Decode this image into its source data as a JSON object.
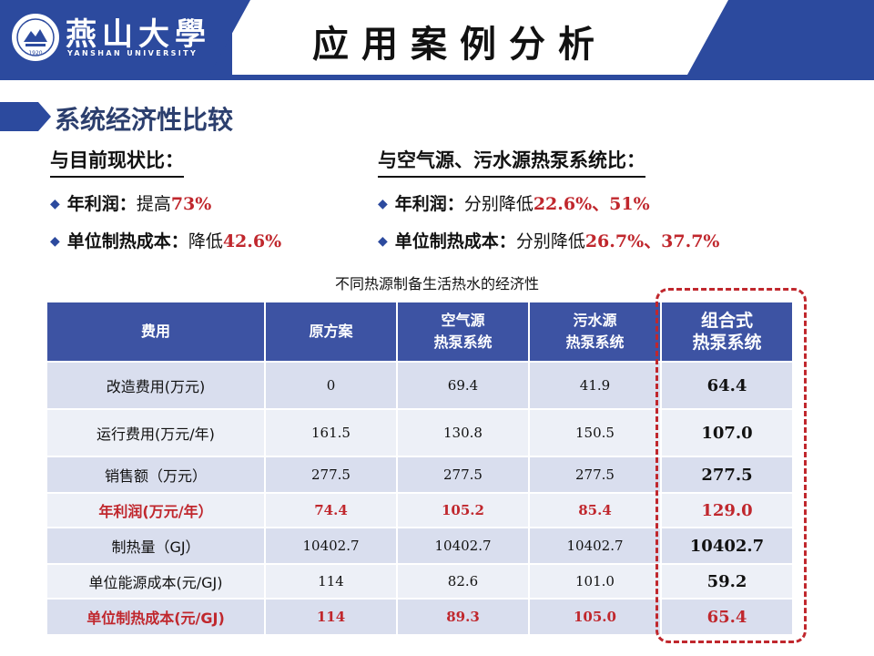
{
  "header": {
    "logo_cn": "燕山大學",
    "logo_en": "YANSHAN UNIVERSITY",
    "seal_year": "1920",
    "title": "应用案例分析"
  },
  "colors": {
    "brand_blue": "#2c4a9e",
    "header_blue": "#3d53a3",
    "accent_red": "#c0272d"
  },
  "section": {
    "title": "系统经济性比较"
  },
  "left": {
    "heading": "与目前现状比：",
    "items": [
      {
        "label": "年利润",
        "sep": "：",
        "text": "提高 ",
        "value": "73%"
      },
      {
        "label": "单位制热成本",
        "sep": "：",
        "text": "降低 ",
        "value": "42.6%"
      }
    ]
  },
  "right": {
    "heading": "与空气源、污水源热泵系统比：",
    "items": [
      {
        "label": "年利润",
        "sep": "：",
        "text": "分别降低 ",
        "value": "22.6%、51%"
      },
      {
        "label": "单位制热成本",
        "sep": "：",
        "text": "分别降低 ",
        "value": "26.7%、37.7%"
      }
    ]
  },
  "table": {
    "title": "不同热源制备生活热水的经济性",
    "headers": [
      {
        "line1": "费用",
        "line2": ""
      },
      {
        "line1": "原方案",
        "line2": ""
      },
      {
        "line1": "空气源",
        "line2": "热泵系统"
      },
      {
        "line1": "污水源",
        "line2": "热泵系统"
      },
      {
        "line1": "组合式",
        "line2": "热泵系统"
      }
    ],
    "rows": [
      {
        "cells": [
          "改造费用(万元)",
          "0",
          "69.4",
          "41.9",
          "64.4"
        ]
      },
      {
        "cells": [
          "运行费用(万元/年)",
          "161.5",
          "130.8",
          "150.5",
          "107.0"
        ]
      },
      {
        "cells": [
          "销售额（万元）",
          "277.5",
          "277.5",
          "277.5",
          "277.5"
        ]
      },
      {
        "cells": [
          "年利润(万元/年）",
          "74.4",
          "105.2",
          "85.4",
          "129.0"
        ]
      },
      {
        "cells": [
          "制热量（GJ）",
          "10402.7",
          "10402.7",
          "10402.7",
          "10402.7"
        ]
      },
      {
        "cells": [
          "单位能源成本(元/GJ)",
          "114",
          "82.6",
          "101.0",
          "59.2"
        ]
      },
      {
        "cells": [
          "单位制热成本(元/GJ)",
          "114",
          "89.3",
          "105.0",
          "65.4"
        ]
      }
    ]
  }
}
